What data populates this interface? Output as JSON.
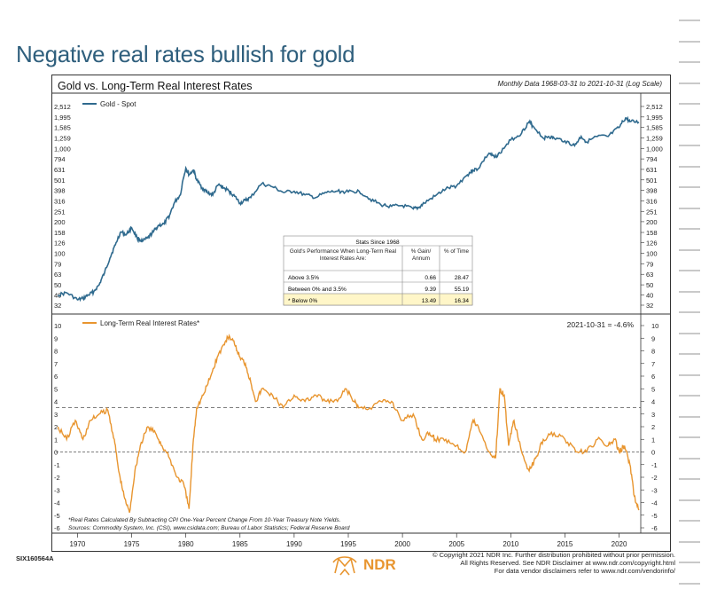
{
  "headline": "Negative real rates bullish for gold",
  "chart_title": "Gold vs. Long-Term Real Interest Rates",
  "chart_subtitle": "Monthly Data 1968-03-31 to 2021-10-31 (Log Scale)",
  "chart_id": "SIX160564A",
  "copyright": {
    "line1": "© Copyright 2021 NDR Inc. Further distribution prohibited without prior permission.",
    "line2": "All Rights Reserved. See NDR Disclaimer at www.ndr.com/copyright.html",
    "line3": "For data vendor disclaimers refer to www.ndr.com/vendorinfo/"
  },
  "logo_text": "NDR",
  "colors": {
    "gold": "#2f6a8e",
    "rates": "#e8952f",
    "headline": "#2f5f7d",
    "highlight": "#fff6c8"
  },
  "stats_table": {
    "title": "Stats Since 1968",
    "header_col1": "Gold's Performance When Long-Term Real Interest Rates Are:",
    "header_col2": "% Gain/ Annum",
    "header_col3": "% of Time",
    "rows": [
      {
        "label": "Above 3.5%",
        "gain": "0.66",
        "time": "28.47"
      },
      {
        "label": "Between 0% and 3.5%",
        "gain": "9.39",
        "time": "55.19"
      },
      {
        "label": "* Below 0%",
        "gain": "13.49",
        "time": "16.34"
      }
    ]
  },
  "footnote1": "*Real Rates Calculated By Subtracting CPI One-Year Percent Change From 10-Year Treasury Note Yields.",
  "footnote2": "Sources: Commodity System, Inc. (CSI), www.csidata.com; Bureau of Labor Statistics; Federal Reserve Board",
  "chart_data": [
    {
      "type": "line",
      "title": "Gold vs. Long-Term Real Interest Rates",
      "scale": "log",
      "series": [
        {
          "name": "Gold - Spot",
          "x": [
            1968.2,
            1969.0,
            1970.0,
            1970.5,
            1971.0,
            1971.5,
            1972.0,
            1972.5,
            1973.0,
            1973.5,
            1974.0,
            1974.5,
            1975.0,
            1975.5,
            1976.0,
            1976.5,
            1977.0,
            1977.5,
            1978.0,
            1978.5,
            1979.0,
            1979.5,
            1980.0,
            1980.3,
            1980.7,
            1981.0,
            1981.5,
            1982.0,
            1982.5,
            1983.0,
            1983.5,
            1984.0,
            1984.5,
            1985.0,
            1985.5,
            1986.0,
            1987.0,
            1988.0,
            1989.0,
            1990.0,
            1991.0,
            1992.0,
            1993.0,
            1994.0,
            1995.0,
            1996.0,
            1997.0,
            1998.0,
            1999.0,
            2000.0,
            2001.0,
            2001.5,
            2002.0,
            2003.0,
            2004.0,
            2005.0,
            2006.0,
            2006.5,
            2007.0,
            2008.0,
            2008.5,
            2009.0,
            2010.0,
            2011.0,
            2011.7,
            2012.0,
            2013.0,
            2013.5,
            2014.0,
            2015.0,
            2015.9,
            2016.5,
            2017.0,
            2018.0,
            2019.0,
            2020.0,
            2020.6,
            2021.0,
            2021.83
          ],
          "values": [
            40,
            42,
            36,
            37,
            40,
            43,
            50,
            65,
            90,
            120,
            160,
            150,
            175,
            140,
            130,
            140,
            160,
            185,
            190,
            230,
            310,
            360,
            650,
            560,
            620,
            500,
            420,
            380,
            360,
            450,
            420,
            390,
            350,
            300,
            320,
            340,
            460,
            430,
            380,
            390,
            360,
            340,
            380,
            390,
            385,
            390,
            330,
            290,
            280,
            285,
            265,
            272,
            300,
            350,
            410,
            440,
            560,
            620,
            640,
            900,
            820,
            900,
            1200,
            1400,
            1800,
            1650,
            1250,
            1300,
            1250,
            1180,
            1060,
            1300,
            1150,
            1300,
            1300,
            1580,
            1950,
            1800,
            1780
          ]
        }
      ]
    },
    {
      "type": "line",
      "title": "Long-Term Real Interest Rates*",
      "annotation": "2021-10-31 = -4.6%",
      "ylim": [
        -6,
        10
      ],
      "reference_lines": [
        3.5,
        0
      ],
      "series": [
        {
          "name": "Long-Term Real Interest Rates*",
          "x": [
            1968.2,
            1969.0,
            1969.8,
            1970.5,
            1971.2,
            1972.0,
            1972.8,
            1973.4,
            1973.8,
            1974.3,
            1974.8,
            1975.3,
            1975.8,
            1976.5,
            1977.2,
            1977.8,
            1978.5,
            1979.2,
            1979.8,
            1980.3,
            1980.7,
            1981.0,
            1981.6,
            1982.3,
            1982.9,
            1983.5,
            1984.0,
            1984.5,
            1985.0,
            1985.5,
            1986.0,
            1986.5,
            1987.0,
            1988.0,
            1989.0,
            1990.0,
            1991.0,
            1992.0,
            1993.0,
            1994.0,
            1994.8,
            1995.5,
            1996.0,
            1997.0,
            1998.0,
            1999.0,
            2000.0,
            2001.0,
            2001.8,
            2002.5,
            2003.0,
            2004.0,
            2005.0,
            2005.8,
            2006.5,
            2007.0,
            2008.0,
            2008.6,
            2009.0,
            2009.4,
            2009.8,
            2010.3,
            2011.0,
            2011.7,
            2012.3,
            2013.0,
            2014.0,
            2015.0,
            2016.0,
            2017.0,
            2018.0,
            2019.0,
            2019.6,
            2020.0,
            2020.5,
            2021.0,
            2021.4,
            2021.83
          ],
          "values": [
            2.0,
            1.0,
            2.5,
            1.0,
            2.5,
            3.0,
            3.3,
            1.0,
            -1.5,
            -3.5,
            -4.8,
            -1.5,
            0.5,
            2.0,
            1.5,
            0.5,
            -0.5,
            -2.0,
            -2.5,
            -4.5,
            1.0,
            3.5,
            4.5,
            6.0,
            7.5,
            8.5,
            9.2,
            8.5,
            7.5,
            7.0,
            5.5,
            4.0,
            5.0,
            4.5,
            3.5,
            4.5,
            4.0,
            4.5,
            4.0,
            4.0,
            5.0,
            4.0,
            3.5,
            3.5,
            4.0,
            4.0,
            2.5,
            3.0,
            1.0,
            1.5,
            1.0,
            1.0,
            0.5,
            0.0,
            2.5,
            2.0,
            0.0,
            -0.5,
            5.0,
            4.5,
            0.5,
            2.5,
            0.0,
            -1.5,
            -0.5,
            1.0,
            1.5,
            1.0,
            0.0,
            0.0,
            1.0,
            0.5,
            1.0,
            0.0,
            0.5,
            -1.0,
            -3.5,
            -4.6
          ]
        }
      ]
    }
  ],
  "x_axis": {
    "ticks": [
      "1970",
      "1975",
      "1980",
      "1985",
      "1990",
      "1995",
      "2000",
      "2005",
      "2010",
      "2015",
      "2020"
    ]
  },
  "gold_axis": {
    "ticks": [
      "2,512",
      "1,995",
      "1,585",
      "1,259",
      "1,000",
      "794",
      "631",
      "501",
      "398",
      "316",
      "251",
      "200",
      "158",
      "126",
      "100",
      "79",
      "63",
      "50",
      "40",
      "32"
    ]
  },
  "rate_axis": {
    "ticks": [
      "10",
      "9",
      "8",
      "7",
      "6",
      "5",
      "4",
      "3",
      "2",
      "1",
      "0",
      "-1",
      "-2",
      "-3",
      "-4",
      "-5",
      "-6"
    ]
  }
}
